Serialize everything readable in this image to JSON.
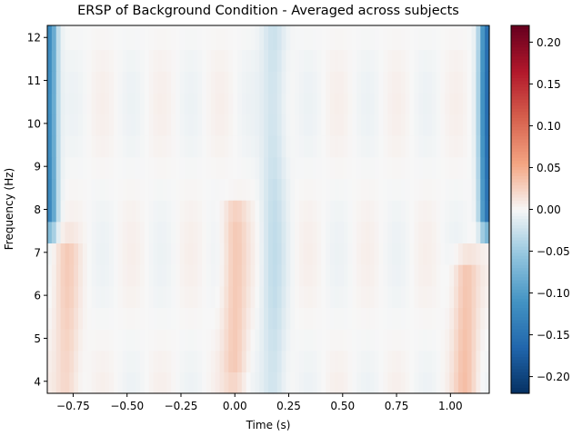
{
  "chart_data": {
    "type": "heatmap",
    "title": "ERSP of Background Condition - Averaged across subjects",
    "xlabel": "Time (s)",
    "ylabel": "Frequency (Hz)",
    "xlim": [
      -0.87,
      1.18
    ],
    "ylim": [
      3.72,
      12.28
    ],
    "x_ticks": [
      -0.75,
      -0.5,
      -0.25,
      0.0,
      0.25,
      0.5,
      0.75,
      1.0
    ],
    "x_tick_labels": [
      "−0.75",
      "−0.50",
      "−0.25",
      "0.00",
      "0.25",
      "0.50",
      "0.75",
      "1.00"
    ],
    "y_ticks": [
      4,
      5,
      6,
      7,
      8,
      9,
      10,
      11,
      12
    ],
    "y_tick_labels": [
      "4",
      "5",
      "6",
      "7",
      "8",
      "9",
      "10",
      "11",
      "12"
    ],
    "colorbar": {
      "colormap": "RdBu_r",
      "range": [
        -0.22,
        0.22
      ],
      "ticks": [
        -0.2,
        -0.15,
        -0.1,
        -0.05,
        0.0,
        0.05,
        0.1,
        0.15,
        0.2
      ],
      "tick_labels": [
        "−0.20",
        "−0.15",
        "−0.10",
        "−0.05",
        "0.00",
        "0.05",
        "0.10",
        "0.15",
        "0.20"
      ]
    },
    "features": [
      {
        "time": -0.86,
        "freq_range": [
          7.8,
          12.2
        ],
        "value": -0.12
      },
      {
        "time": -0.78,
        "freq_range": [
          3.8,
          7.0
        ],
        "value": 0.025
      },
      {
        "time": 0.0,
        "freq_range": [
          4.2,
          7.8
        ],
        "value": 0.03
      },
      {
        "time": 0.18,
        "freq_range": [
          3.8,
          12.2
        ],
        "value": -0.025
      },
      {
        "time": 1.07,
        "freq_range": [
          3.8,
          6.6
        ],
        "value": 0.035
      },
      {
        "time": 1.17,
        "freq_range": [
          7.8,
          12.2
        ],
        "value": -0.15
      }
    ]
  }
}
